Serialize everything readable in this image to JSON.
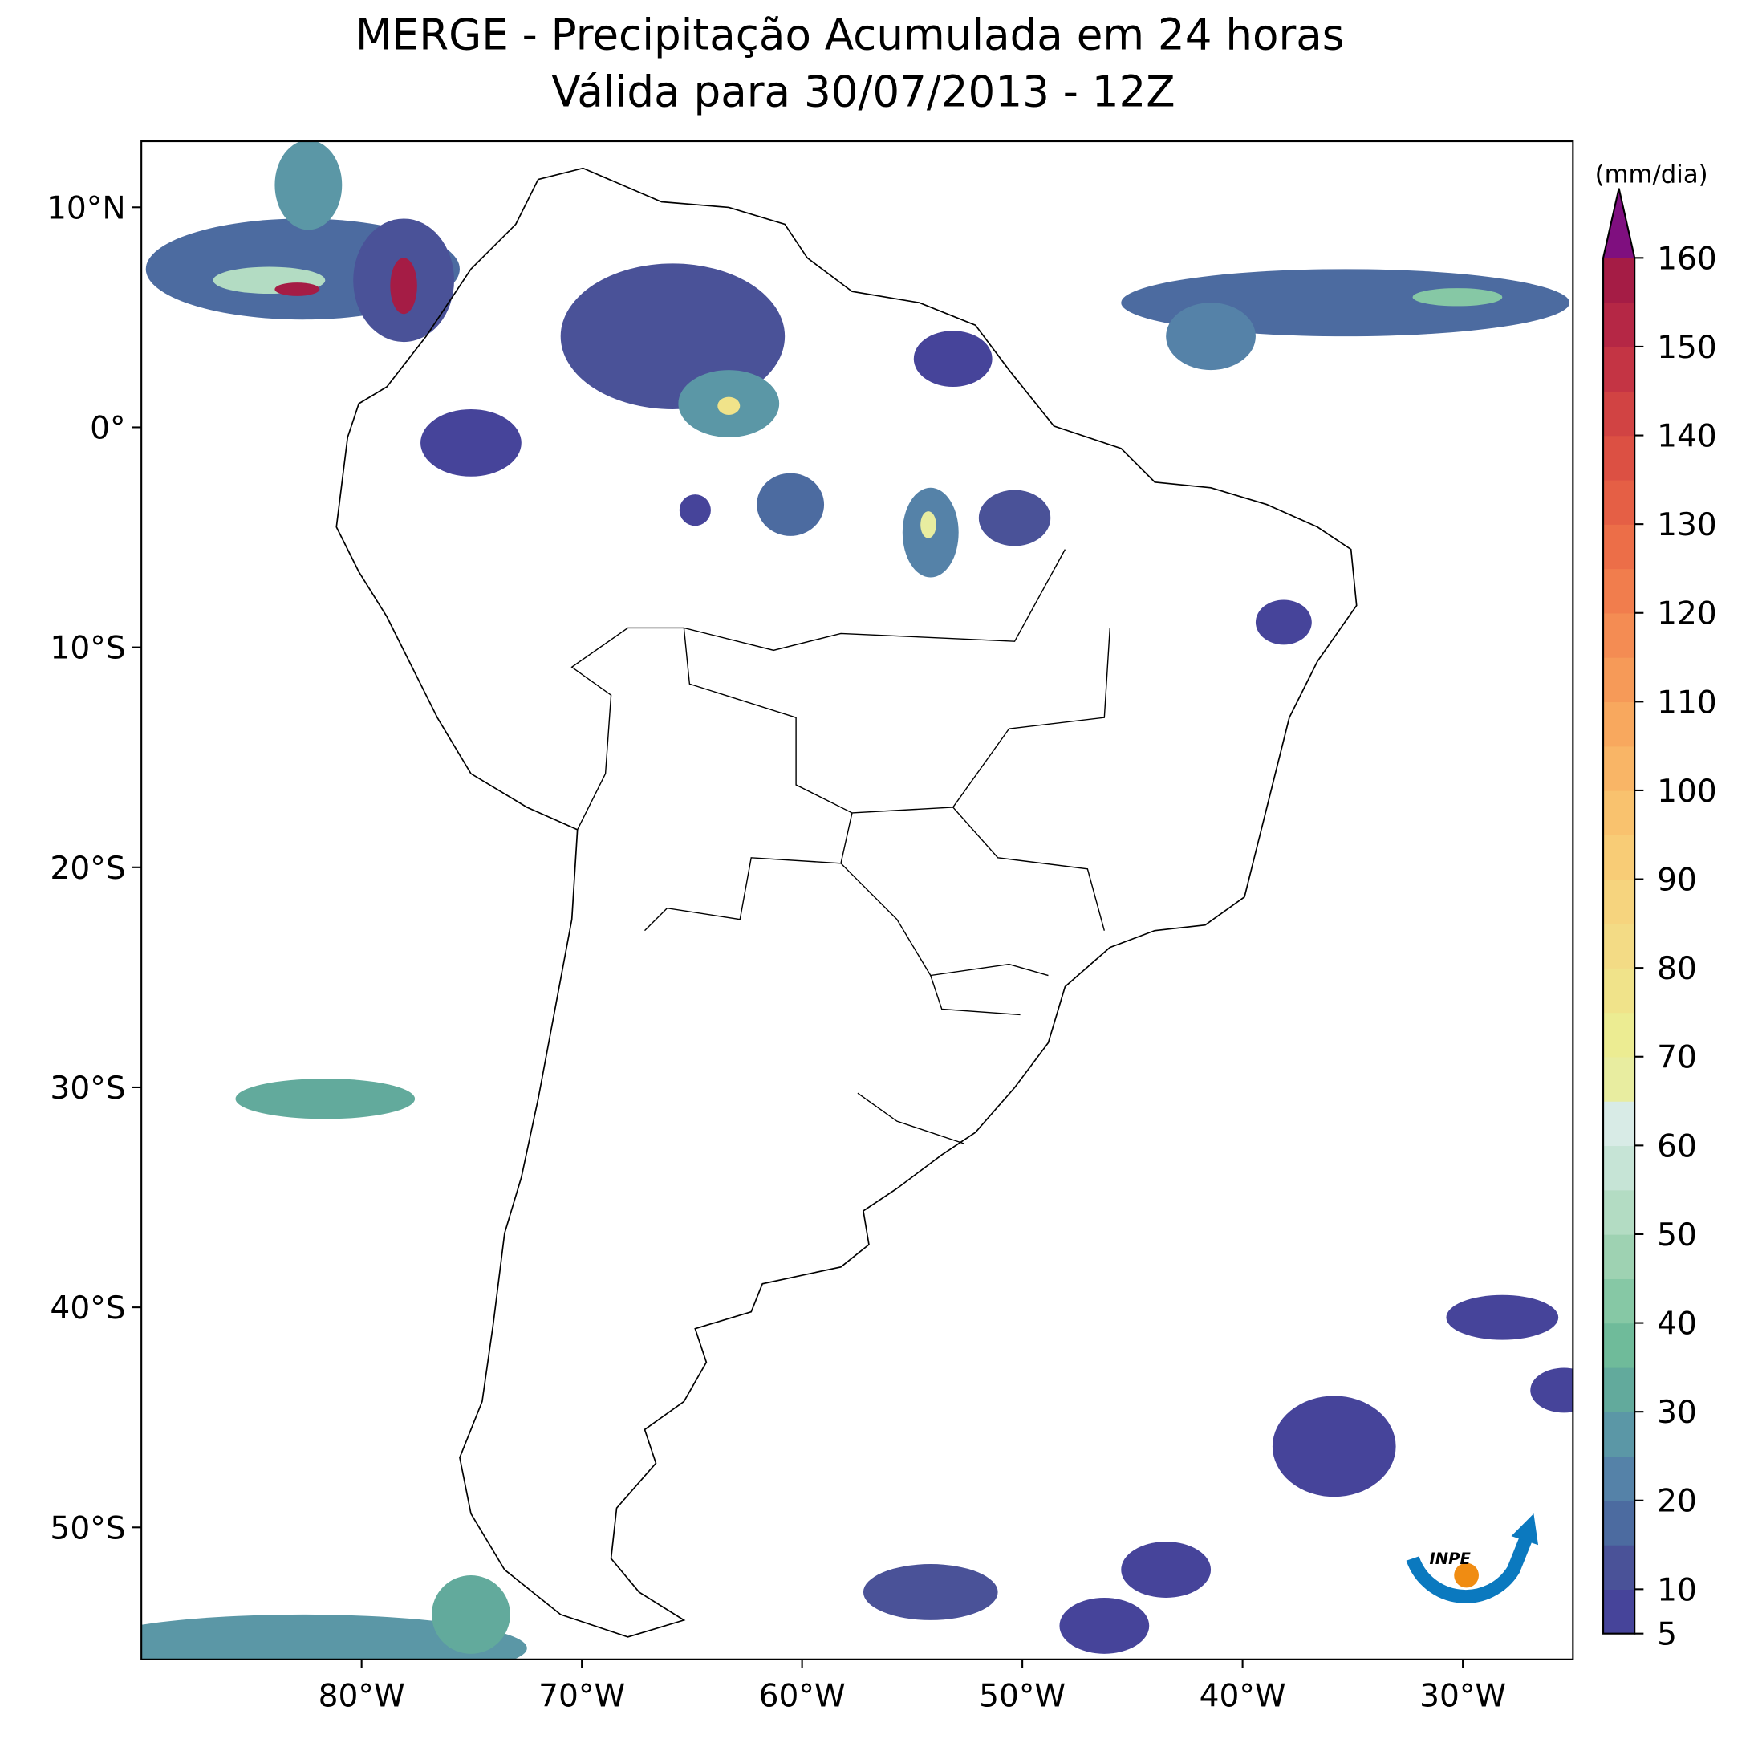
{
  "title": "MERGE - Precipitação Acumulada em 24 horas",
  "subtitle": "Válida para 30/07/2013 - 12Z",
  "map": {
    "lonlim": [
      -90,
      -25
    ],
    "latlim": [
      -56,
      13
    ],
    "lon_ticks": [
      {
        "value": -80,
        "label": "80°W"
      },
      {
        "value": -70,
        "label": "70°W"
      },
      {
        "value": -60,
        "label": "60°W"
      },
      {
        "value": -50,
        "label": "50°W"
      },
      {
        "value": -40,
        "label": "40°W"
      },
      {
        "value": -30,
        "label": "30°W"
      }
    ],
    "lat_ticks": [
      {
        "value": 10,
        "label": "10°N"
      },
      {
        "value": 0,
        "label": "0°"
      },
      {
        "value": -10,
        "label": "10°S"
      },
      {
        "value": -20,
        "label": "20°S"
      },
      {
        "value": -30,
        "label": "30°S"
      },
      {
        "value": -40,
        "label": "40°S"
      },
      {
        "value": -50,
        "label": "50°S"
      }
    ]
  },
  "colorbar": {
    "label": "(mm/dia)",
    "lim": [
      5,
      160
    ],
    "ticks": [
      5,
      10,
      20,
      30,
      40,
      50,
      60,
      70,
      80,
      90,
      100,
      110,
      120,
      130,
      140,
      150,
      160
    ],
    "colors": [
      "#46449a",
      "#4a5298",
      "#4c6ba0",
      "#5582a8",
      "#5b97a6",
      "#62aa9c",
      "#6fbb9a",
      "#86c8a5",
      "#9ed2b2",
      "#b3dcc3",
      "#c6e4d6",
      "#d8ebe6",
      "#e8eda0",
      "#ecec92",
      "#f0e38a",
      "#f3db85",
      "#f6d47e",
      "#f8cc76",
      "#f9c26e",
      "#f9b566",
      "#f8a85e",
      "#f69a58",
      "#f48c53",
      "#f17d4d",
      "#ec6e48",
      "#e55f45",
      "#dc5043",
      "#d14343",
      "#c43444",
      "#b52745",
      "#a51c45"
    ],
    "extend_color": "#7f0f7f"
  },
  "logo": "INPE"
}
